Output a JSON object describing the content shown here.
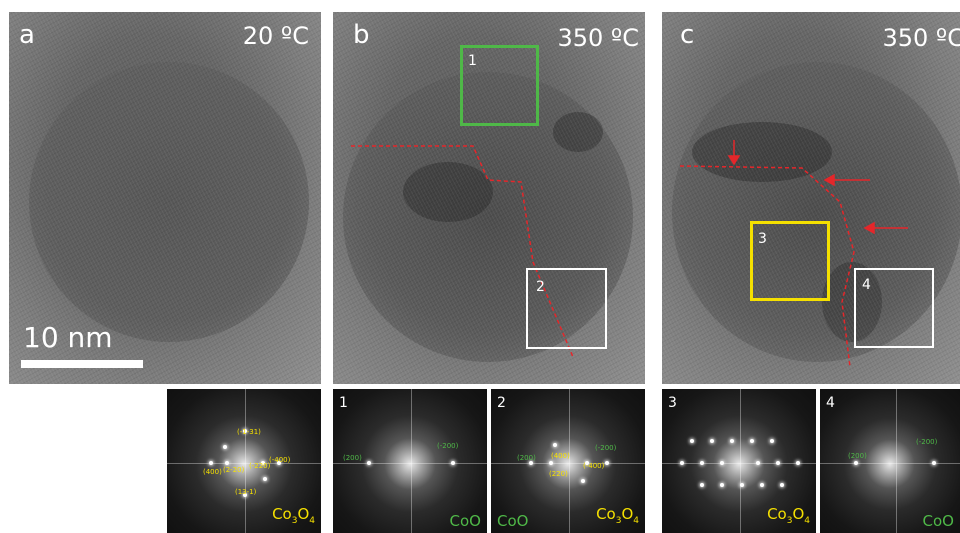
{
  "colors": {
    "green": "#4fb848",
    "yellow": "#f5e000",
    "white": "#ffffff",
    "red": "#e5262a"
  },
  "panels": [
    {
      "label": "a",
      "temperature": "20 ºC"
    },
    {
      "label": "b",
      "temperature": "350 ºC",
      "regions": [
        "1",
        "2"
      ]
    },
    {
      "label": "c",
      "temperature": "350 ºC",
      "regions": [
        "3",
        "4"
      ]
    }
  ],
  "scale_bar": {
    "text": "10 nm"
  },
  "fft_panels": [
    {
      "phase_parts": [
        "Co",
        "3",
        "O",
        "4"
      ],
      "phase_color": "#f5e000",
      "indices": [
        "(-1-31)",
        "(400)",
        "(2-20)",
        "(-220)",
        "(-400)",
        "(13-1)"
      ]
    },
    {
      "number": "1",
      "phase": "CoO",
      "phase_color": "#4fb848",
      "indices": [
        "(200)",
        "(-200)"
      ]
    },
    {
      "number": "2",
      "phase_left": "CoO",
      "phase_parts": [
        "Co",
        "3",
        "O",
        "4"
      ],
      "indices_green": [
        "(200)",
        "(-200)"
      ],
      "indices_yellow": [
        "(400)",
        "(-400)",
        "(220)"
      ]
    },
    {
      "number": "3",
      "phase_parts": [
        "Co",
        "3",
        "O",
        "4"
      ],
      "phase_color": "#f5e000"
    },
    {
      "number": "4",
      "phase": "CoO",
      "phase_color": "#4fb848",
      "indices": [
        "(200)",
        "(-200)"
      ]
    }
  ]
}
